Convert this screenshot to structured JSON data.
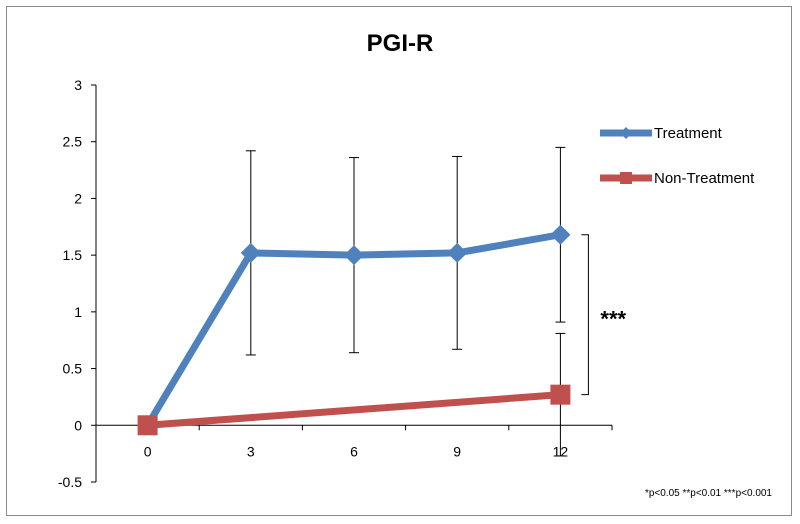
{
  "chart_data": {
    "type": "line",
    "title": "PGI-R",
    "xlabel": "",
    "ylabel": "",
    "categories": [
      "0",
      "3",
      "6",
      "9",
      "12"
    ],
    "x": [
      0,
      3,
      6,
      9,
      12
    ],
    "ylim": [
      -0.5,
      3
    ],
    "yticks": [
      "3",
      "2.5",
      "2",
      "1.5",
      "1",
      "0.5",
      "0",
      "-0.5"
    ],
    "ytick_values": [
      3,
      2.5,
      2,
      1.5,
      1,
      0.5,
      0,
      -0.5
    ],
    "legend_position": "right",
    "grid": false,
    "series": [
      {
        "name": "Treatment",
        "color": "#4f81bd",
        "marker": "diamond",
        "x": [
          0,
          3,
          6,
          9,
          12
        ],
        "values": [
          0,
          1.52,
          1.5,
          1.52,
          1.68
        ],
        "error_low": [
          null,
          0.62,
          0.64,
          0.67,
          0.91
        ],
        "error_high": [
          null,
          2.42,
          2.36,
          2.37,
          2.45
        ]
      },
      {
        "name": "Non-Treatment",
        "color": "#c0504d",
        "marker": "square",
        "x": [
          0,
          12
        ],
        "values": [
          0,
          0.27
        ],
        "error_low": [
          null,
          -0.27
        ],
        "error_high": [
          null,
          0.81
        ]
      }
    ],
    "annotation": {
      "text": "***",
      "between_at_x": 12,
      "from_value": 1.68,
      "to_value": 0.27
    },
    "footnote": "*p<0.05 **p<0.01 ***p<0.001"
  }
}
